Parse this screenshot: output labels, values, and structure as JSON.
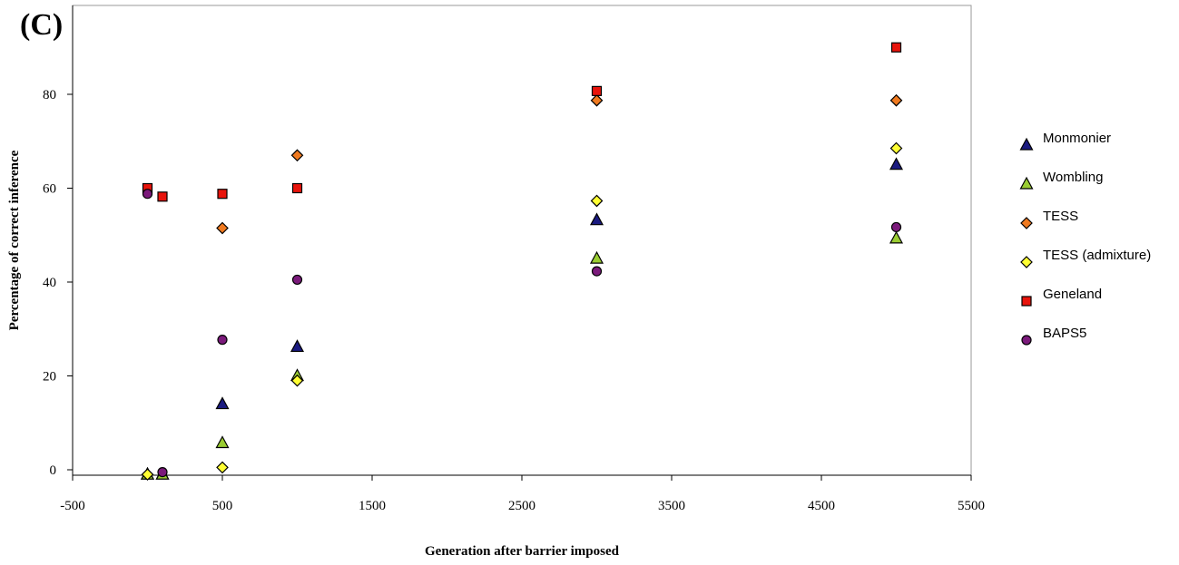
{
  "panel_label": "(C)",
  "chart_data": {
    "type": "scatter",
    "title": "",
    "xlabel": "Generation after barrier imposed",
    "ylabel": "Percentage of correct inference",
    "xlim": [
      -500,
      5500
    ],
    "ylim": [
      -1,
      100
    ],
    "xticks": [
      -500,
      500,
      1500,
      2500,
      3500,
      4500,
      5500
    ],
    "yticks": [
      0,
      20,
      40,
      60,
      80
    ],
    "grid": false,
    "legend": "right",
    "series": [
      {
        "name": "Monmonier",
        "marker": "triangle",
        "color": "#1a1a80",
        "points": [
          [
            0,
            -1
          ],
          [
            100,
            -1
          ],
          [
            500,
            14
          ],
          [
            1000,
            26.2
          ],
          [
            3000,
            53.2
          ],
          [
            5000,
            65
          ]
        ]
      },
      {
        "name": "Wombling",
        "marker": "triangle",
        "color": "#9acd32",
        "points": [
          [
            0,
            -1
          ],
          [
            100,
            -1
          ],
          [
            500,
            5.7
          ],
          [
            1000,
            20
          ],
          [
            3000,
            45
          ],
          [
            5000,
            49.3
          ]
        ]
      },
      {
        "name": "TESS",
        "marker": "diamond",
        "color": "#f07a20",
        "points": [
          [
            500,
            51.5
          ],
          [
            1000,
            67
          ],
          [
            3000,
            78.7
          ],
          [
            5000,
            78.7
          ]
        ]
      },
      {
        "name": "TESS (admixture)",
        "marker": "diamond",
        "color": "#ffff33",
        "points": [
          [
            0,
            -1
          ],
          [
            500,
            0.5
          ],
          [
            1000,
            19
          ],
          [
            3000,
            57.3
          ],
          [
            5000,
            68.5
          ]
        ]
      },
      {
        "name": "Geneland",
        "marker": "square",
        "color": "#e8140c",
        "points": [
          [
            0,
            60
          ],
          [
            100,
            58.2
          ],
          [
            500,
            58.8
          ],
          [
            1000,
            60
          ],
          [
            3000,
            80.7
          ],
          [
            5000,
            90
          ]
        ]
      },
      {
        "name": "BAPS5",
        "marker": "circle",
        "color": "#7b1a7b",
        "points": [
          [
            0,
            58.8
          ],
          [
            100,
            -0.5
          ],
          [
            500,
            27.7
          ],
          [
            1000,
            40.5
          ],
          [
            3000,
            42.3
          ],
          [
            5000,
            51.7
          ]
        ]
      }
    ]
  }
}
